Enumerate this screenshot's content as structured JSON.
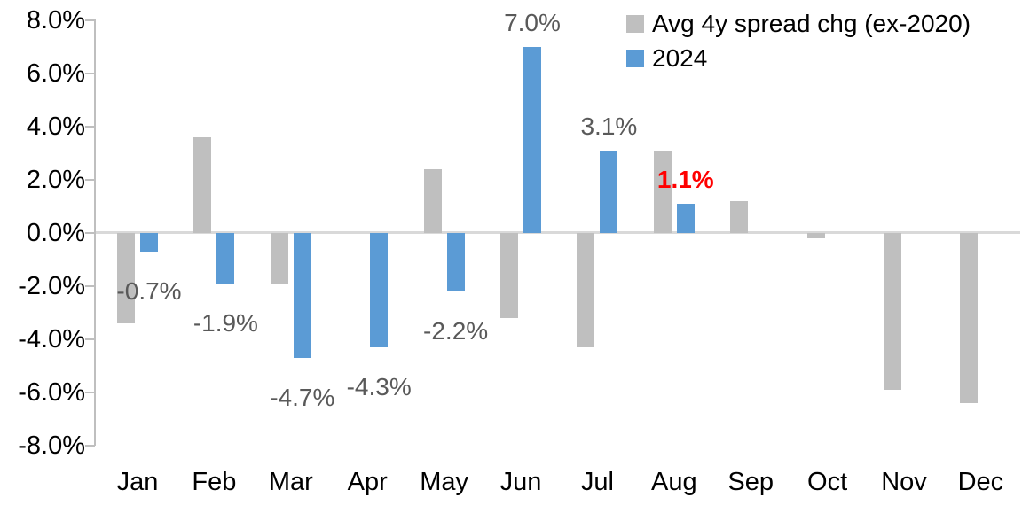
{
  "chart_data": {
    "type": "bar",
    "title": "",
    "xlabel": "",
    "ylabel": "",
    "ylim": [
      -8,
      8
    ],
    "grid": "zero-baseline-only",
    "legend_position": "top-right",
    "axis_color": "#BFBFBF",
    "baseline_color": "#D9D9D9",
    "axis_text_color": "#000000",
    "categories": [
      "Jan",
      "Feb",
      "Mar",
      "Apr",
      "May",
      "Jun",
      "Jul",
      "Aug",
      "Sep",
      "Oct",
      "Nov",
      "Dec"
    ],
    "y_ticks": [
      {
        "value": 8,
        "label": "8.0%"
      },
      {
        "value": 6,
        "label": "6.0%"
      },
      {
        "value": 4,
        "label": "4.0%"
      },
      {
        "value": 2,
        "label": "2.0%"
      },
      {
        "value": 0,
        "label": "0.0%"
      },
      {
        "value": -2,
        "label": "-2.0%"
      },
      {
        "value": -4,
        "label": "-4.0%"
      },
      {
        "value": -6,
        "label": "-6.0%"
      },
      {
        "value": -8,
        "label": "-8.0%"
      }
    ],
    "series": [
      {
        "name": "Avg 4y spread chg (ex-2020)",
        "color": "#BFBFBF",
        "values": [
          -3.4,
          3.6,
          -1.9,
          0.0,
          2.4,
          -3.2,
          -4.3,
          3.1,
          1.2,
          -0.2,
          -5.9,
          -6.4
        ]
      },
      {
        "name": "2024",
        "color": "#5B9BD5",
        "values": [
          -0.7,
          -1.9,
          -4.7,
          -4.3,
          -2.2,
          7.0,
          3.1,
          1.1,
          null,
          null,
          null,
          null
        ],
        "data_labels": [
          "-0.7%",
          "-1.9%",
          "-4.7%",
          "-4.3%",
          "-2.2%",
          "7.0%",
          "3.1%",
          "1.1%",
          "",
          "",
          "",
          ""
        ],
        "label_color": "#595959",
        "label_highlight": {
          "index": 7,
          "color": "#FF0000",
          "bold": true
        }
      }
    ]
  }
}
